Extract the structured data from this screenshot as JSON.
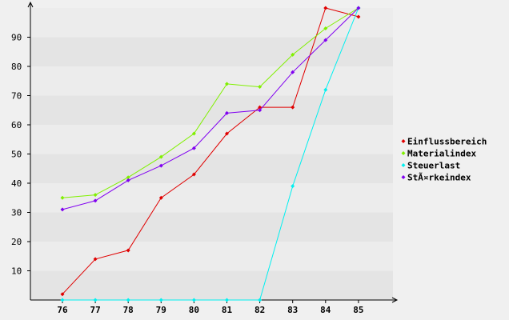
{
  "chart_data": {
    "type": "line",
    "x": [
      "76",
      "77",
      "78",
      "79",
      "80",
      "81",
      "82",
      "83",
      "84",
      "85"
    ],
    "ylim": [
      0,
      100
    ],
    "yticks": [
      10,
      20,
      30,
      40,
      50,
      60,
      70,
      80,
      90
    ],
    "grid": "horizontal alternating bands",
    "legend_position": "right",
    "series": [
      {
        "name": "Einflussbereich",
        "color": "#e00000",
        "values": [
          2,
          14,
          17,
          35,
          43,
          57,
          66,
          66,
          100,
          97
        ]
      },
      {
        "name": "Materialindex",
        "color": "#80f000",
        "values": [
          35,
          36,
          42,
          49,
          57,
          74,
          73,
          84,
          93,
          100
        ]
      },
      {
        "name": "Steuerlast",
        "color": "#00f0f0",
        "values": [
          0,
          0,
          0,
          0,
          0,
          0,
          0,
          39,
          72,
          100
        ]
      },
      {
        "name": "StÃ¤rkeindex",
        "color": "#8000f0",
        "values": [
          31,
          34,
          41,
          46,
          52,
          64,
          65,
          78,
          89,
          100
        ]
      }
    ]
  }
}
